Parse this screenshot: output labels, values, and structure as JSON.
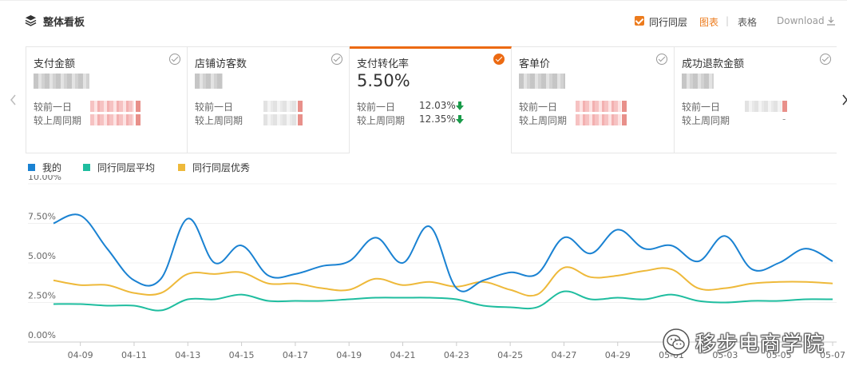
{
  "header": {
    "title": "整体看板",
    "peer_toggle_label": "同行同层",
    "view_chart": "图表",
    "view_separator": "|",
    "view_table": "表格",
    "download_label": "Download"
  },
  "cards": [
    {
      "name": "支付金额",
      "value": "",
      "day_label": "较前一日",
      "week_label": "较上周同期",
      "active": false
    },
    {
      "name": "店铺访客数",
      "value": "",
      "day_label": "较前一日",
      "week_label": "较上周同期",
      "active": false
    },
    {
      "name": "支付转化率",
      "value": "5.50%",
      "day_label": "较前一日",
      "week_label": "较上周同期",
      "day_change": "12.03%",
      "week_change": "12.35%",
      "active": true
    },
    {
      "name": "客单价",
      "value": "",
      "day_label": "较前一日",
      "week_label": "较上周同期",
      "active": false
    },
    {
      "name": "成功退款金额",
      "value": "",
      "day_label": "较前一日",
      "week_label": "较上周同期",
      "week_change": "-",
      "active": false
    }
  ],
  "colors": {
    "accent": "#ec6a12",
    "mine": "#1a82d2",
    "peer_avg": "#1fbd9f",
    "peer_excellent": "#eeb93a",
    "down_arrow": "#1a9b4a"
  },
  "legend": [
    "我的",
    "同行同层平均",
    "同行同层优秀"
  ],
  "chart_data": {
    "type": "line",
    "x": [
      "04-08",
      "04-09",
      "04-10",
      "04-11",
      "04-12",
      "04-13",
      "04-14",
      "04-15",
      "04-16",
      "04-17",
      "04-18",
      "04-19",
      "04-20",
      "04-21",
      "04-22",
      "04-23",
      "04-24",
      "04-25",
      "04-26",
      "04-27",
      "04-28",
      "04-29",
      "04-30",
      "05-01",
      "05-02",
      "05-03",
      "05-04",
      "05-05",
      "05-06",
      "05-07"
    ],
    "x_tick_labels": [
      "04-09",
      "04-11",
      "04-13",
      "04-15",
      "04-17",
      "04-19",
      "04-21",
      "04-23",
      "04-25",
      "04-27",
      "04-29",
      "05-01",
      "05-03",
      "05-05",
      "05-07"
    ],
    "y_tick_labels": [
      "0.00%",
      "2.50%",
      "5.00%",
      "7.50%",
      "10.00%"
    ],
    "ylim": [
      0,
      10
    ],
    "y_unit": "%",
    "grid": true,
    "legend_position": "top-left",
    "series": [
      {
        "name": "我的",
        "values": [
          7.5,
          8.0,
          5.9,
          3.9,
          4.0,
          7.8,
          5.0,
          6.1,
          4.2,
          4.3,
          4.8,
          5.1,
          6.6,
          5.0,
          7.3,
          3.4,
          3.9,
          4.4,
          4.3,
          6.6,
          5.6,
          7.1,
          5.9,
          6.1,
          5.1,
          6.7,
          4.6,
          5.0,
          5.9,
          5.1
        ]
      },
      {
        "name": "同行同层平均",
        "values": [
          2.4,
          2.4,
          2.3,
          2.3,
          2.0,
          2.7,
          2.7,
          3.0,
          2.6,
          2.6,
          2.6,
          2.7,
          2.8,
          2.8,
          2.8,
          2.7,
          2.3,
          2.2,
          2.2,
          3.2,
          2.7,
          2.8,
          2.7,
          3.0,
          2.6,
          2.5,
          2.6,
          2.6,
          2.7,
          2.7
        ]
      },
      {
        "name": "同行同层优秀",
        "values": [
          3.9,
          3.6,
          3.6,
          3.1,
          3.1,
          4.3,
          4.3,
          4.4,
          3.7,
          3.7,
          3.4,
          3.3,
          4.0,
          3.6,
          3.8,
          3.5,
          3.8,
          3.3,
          3.0,
          4.7,
          4.1,
          4.2,
          4.5,
          4.6,
          3.4,
          3.4,
          3.7,
          3.8,
          3.8,
          3.7
        ]
      }
    ]
  },
  "watermark": {
    "text": "移步电商学院"
  }
}
